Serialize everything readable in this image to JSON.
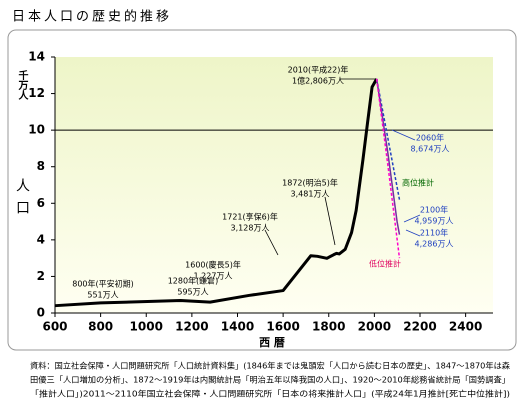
{
  "chart_data": {
    "type": "line",
    "title": "日本人口の歴史的推移",
    "y_unit": "千万人",
    "y_label": "人口",
    "x_label": "西 暦",
    "xlim": [
      600,
      2520
    ],
    "xticks": [
      600,
      800,
      1000,
      1200,
      1400,
      1600,
      1800,
      2000,
      2200,
      2400
    ],
    "ylim": [
      0,
      14
    ],
    "yticks": [
      0,
      2,
      4,
      6,
      8,
      10,
      12,
      14
    ],
    "reference_line": 10,
    "series": [
      {
        "color": "#000000",
        "x": [
          600,
          800,
          1150,
          1280,
          1450,
          1600,
          1721,
          1750,
          1792,
          1804,
          1822,
          1834,
          1846,
          1872,
          1900,
          1920,
          1950,
          1970,
          1990,
          2010
        ],
        "values": [
          0.4,
          0.551,
          0.684,
          0.595,
          0.96,
          1.227,
          3.128,
          3.1,
          2.99,
          3.07,
          3.19,
          3.26,
          3.23,
          3.481,
          4.4,
          5.6,
          8.4,
          10.4,
          12.36,
          12.806
        ]
      },
      {
        "color": "#2040c0",
        "x": [
          2010,
          2060,
          2110
        ],
        "values": [
          12.806,
          9.5,
          6.2
        ]
      },
      {
        "color": "#7030a0",
        "x": [
          2010,
          2060,
          2100,
          2110
        ],
        "values": [
          12.806,
          8.674,
          4.959,
          4.286
        ]
      },
      {
        "color": "#ff00cc",
        "x": [
          2010,
          2060,
          2110
        ],
        "values": [
          12.806,
          8.0,
          3.0
        ]
      }
    ],
    "annotations": [
      {
        "lines": [
          "2010(平成22)年",
          "1億2,806万人"
        ],
        "color": "#000000"
      },
      {
        "lines": [
          "2060年",
          "8,674万人"
        ],
        "color": "#2040c0"
      },
      {
        "lines": [
          "高位推計"
        ],
        "color": "#006600"
      },
      {
        "lines": [
          "2100年",
          "4,959万人"
        ],
        "color": "#2040c0"
      },
      {
        "lines": [
          "2110年",
          "4,286万人"
        ],
        "color": "#2040c0"
      },
      {
        "lines": [
          "低位推計"
        ],
        "color": "#e00060"
      },
      {
        "lines": [
          "1872(明治5)年",
          "3,481万人"
        ],
        "color": "#000000"
      },
      {
        "lines": [
          "1721(享保6)年",
          "3,128万人"
        ],
        "color": "#000000"
      },
      {
        "lines": [
          "1600(慶長5)年",
          "1,227万人"
        ],
        "color": "#000000"
      },
      {
        "lines": [
          "1280年(鎌倉)",
          "595万人"
        ],
        "color": "#000000"
      },
      {
        "lines": [
          "800年(平安初期)",
          "551万人"
        ],
        "color": "#000000"
      }
    ],
    "source": [
      "資料：国立社会保障・人口問題研究所「人口統計資料集」(1846年までは鬼頭宏「人口から読む日本の歴史」、1847～1870年は森",
      "田優三「人口増加の分析」、1872～1919年は内閣統計局「明治五年以降我国の人口」、1920～2010年総務省統計局「国勢調査」",
      "「推計人口」)2011～2110年国立社会保障・人口問題研究所「日本の将来推計人口」(平成24年1月推計[死亡中位推計])"
    ]
  }
}
